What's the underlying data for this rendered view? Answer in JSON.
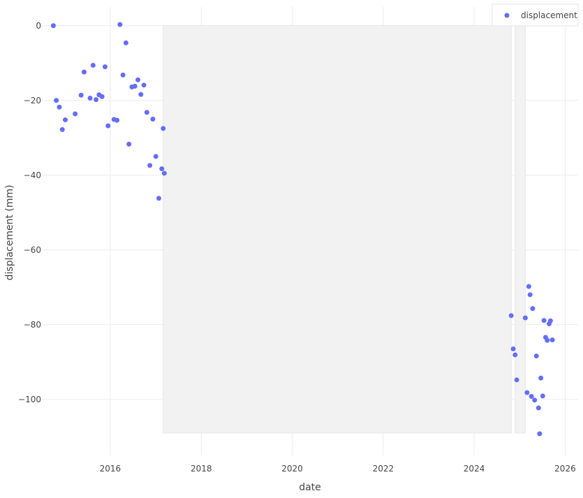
{
  "chart_data": {
    "type": "scatter",
    "xlabel": "date",
    "ylabel": "displacement (mm)",
    "x_ticks": [
      "2016",
      "2018",
      "2020",
      "2022",
      "2024",
      "2026"
    ],
    "y_ticks": [
      "0",
      "−20",
      "−40",
      "−60",
      "−80",
      "−100"
    ],
    "xlim": [
      "2014-07-01",
      "2026-04-15"
    ],
    "ylim": [
      -115,
      5
    ],
    "grid": true,
    "legend_position": "top-right",
    "marker_color": "#636efa",
    "gap_fill_color": "#f2f2f2",
    "gaps": [
      {
        "start": "2017-03-01",
        "end": "2024-10-25",
        "ymin": -109,
        "ymax": 0
      },
      {
        "start": "2024-11-25",
        "end": "2025-02-15",
        "ymin": -109,
        "ymax": 0
      }
    ],
    "series": [
      {
        "name": "displacement",
        "points": [
          [
            "2014-10-01",
            0
          ],
          [
            "2014-10-25",
            -20
          ],
          [
            "2014-11-18",
            -21.8
          ],
          [
            "2014-12-12",
            -27.8
          ],
          [
            "2015-01-05",
            -25.2
          ],
          [
            "2015-03-25",
            -23.6
          ],
          [
            "2015-05-12",
            -18.6
          ],
          [
            "2015-06-05",
            -12.4
          ],
          [
            "2015-07-23",
            -19.4
          ],
          [
            "2015-08-16",
            -10.6
          ],
          [
            "2015-09-09",
            -19.8
          ],
          [
            "2015-10-03",
            -18.5
          ],
          [
            "2015-10-27",
            -19
          ],
          [
            "2015-11-20",
            -11
          ],
          [
            "2015-12-14",
            -26.8
          ],
          [
            "2016-01-31",
            -25.1
          ],
          [
            "2016-02-24",
            -25.3
          ],
          [
            "2016-03-19",
            0.3
          ],
          [
            "2016-04-12",
            -13.2
          ],
          [
            "2016-05-06",
            -4.6
          ],
          [
            "2016-05-30",
            -31.7
          ],
          [
            "2016-06-23",
            -16.4
          ],
          [
            "2016-07-17",
            -16.2
          ],
          [
            "2016-08-10",
            -14.5
          ],
          [
            "2016-09-03",
            -18.4
          ],
          [
            "2016-09-27",
            -15.9
          ],
          [
            "2016-10-21",
            -23.2
          ],
          [
            "2016-11-14",
            -37.4
          ],
          [
            "2016-12-08",
            -25
          ],
          [
            "2017-01-01",
            -35
          ],
          [
            "2017-01-25",
            -46.2
          ],
          [
            "2017-02-18",
            -38.3
          ],
          [
            "2017-03-01",
            -27.5
          ],
          [
            "2017-03-10",
            -39.5
          ],
          [
            "2024-10-25",
            -77.6
          ],
          [
            "2024-11-10",
            -86.5
          ],
          [
            "2024-11-25",
            -88.1
          ],
          [
            "2024-12-08",
            -94.8
          ],
          [
            "2025-02-15",
            -78.2
          ],
          [
            "2025-03-01",
            -98.2
          ],
          [
            "2025-03-15",
            -69.8
          ],
          [
            "2025-03-25",
            -72
          ],
          [
            "2025-04-05",
            -99.2
          ],
          [
            "2025-04-15",
            -75.7
          ],
          [
            "2025-05-01",
            -100.2
          ],
          [
            "2025-05-15",
            -88.4
          ],
          [
            "2025-06-01",
            -102.3
          ],
          [
            "2025-06-10",
            -109.2
          ],
          [
            "2025-06-20",
            -94.3
          ],
          [
            "2025-07-05",
            -99.1
          ],
          [
            "2025-07-15",
            -78.9
          ],
          [
            "2025-07-28",
            -83.4
          ],
          [
            "2025-08-10",
            -84.2
          ],
          [
            "2025-08-25",
            -79.8
          ],
          [
            "2025-09-05",
            -79
          ],
          [
            "2025-09-20",
            -84.1
          ]
        ]
      }
    ]
  }
}
